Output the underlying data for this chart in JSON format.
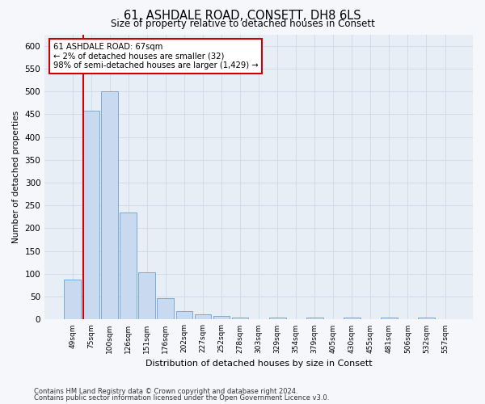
{
  "title": "61, ASHDALE ROAD, CONSETT, DH8 6LS",
  "subtitle": "Size of property relative to detached houses in Consett",
  "xlabel": "Distribution of detached houses by size in Consett",
  "ylabel": "Number of detached properties",
  "categories": [
    "49sqm",
    "75sqm",
    "100sqm",
    "126sqm",
    "151sqm",
    "176sqm",
    "202sqm",
    "227sqm",
    "252sqm",
    "278sqm",
    "303sqm",
    "329sqm",
    "354sqm",
    "379sqm",
    "405sqm",
    "430sqm",
    "455sqm",
    "481sqm",
    "506sqm",
    "532sqm",
    "557sqm"
  ],
  "values": [
    88,
    457,
    500,
    235,
    103,
    47,
    18,
    12,
    8,
    5,
    1,
    5,
    1,
    5,
    1,
    5,
    1,
    5,
    1,
    5,
    1
  ],
  "bar_color": "#c9d9ef",
  "bar_edge_color": "#6a9fd8",
  "subject_line_color": "#cc0000",
  "annotation_text": "61 ASHDALE ROAD: 67sqm\n← 2% of detached houses are smaller (32)\n98% of semi-detached houses are larger (1,429) →",
  "annotation_box_facecolor": "#ffffff",
  "annotation_box_edgecolor": "#cc0000",
  "grid_color": "#d0dcea",
  "plot_bg_color": "#e8eef6",
  "fig_bg_color": "#f5f7fb",
  "ylim": [
    0,
    625
  ],
  "yticks": [
    0,
    50,
    100,
    150,
    200,
    250,
    300,
    350,
    400,
    450,
    500,
    550,
    600
  ],
  "footer1": "Contains HM Land Registry data © Crown copyright and database right 2024.",
  "footer2": "Contains public sector information licensed under the Open Government Licence v3.0."
}
